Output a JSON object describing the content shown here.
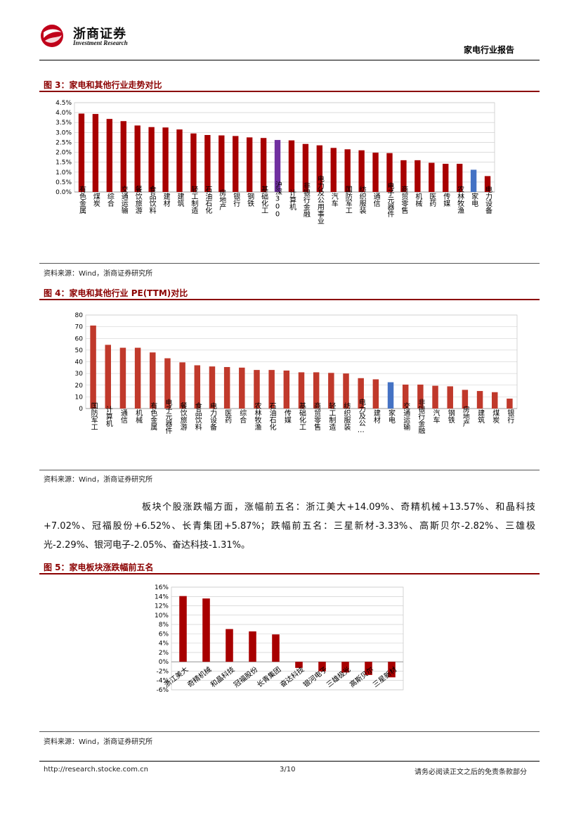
{
  "header": {
    "company_cn": "浙商证券",
    "company_en": "Investment Research",
    "report_type": "家电行业报告"
  },
  "figure3": {
    "title": "图 3：家电和其他行业走势对比",
    "source": "资料来源：Wind，浙商证券研究所",
    "chart_data": {
      "type": "bar",
      "categories": [
        "有色金属",
        "煤炭",
        "综合",
        "交通运输",
        "餐饮旅游",
        "食品饮料",
        "建材",
        "建筑",
        "轻工制造",
        "石油石化",
        "房地产",
        "银行",
        "钢铁",
        "基础化工",
        "沪深300",
        "计算机",
        "非银行金融",
        "电力及公用事业",
        "汽车",
        "国防军工",
        "纺织服装",
        "通信",
        "电子元器件",
        "商贸零售",
        "机械",
        "医药",
        "传媒",
        "农林牧渔",
        "家电",
        "电力设备"
      ],
      "values": [
        3.95,
        3.93,
        3.68,
        3.57,
        3.35,
        3.27,
        3.25,
        3.15,
        2.95,
        2.87,
        2.85,
        2.82,
        2.75,
        2.72,
        2.62,
        2.6,
        2.42,
        2.35,
        2.22,
        2.15,
        2.1,
        1.98,
        1.96,
        1.6,
        1.6,
        1.47,
        1.42,
        1.42,
        1.12,
        0.8
      ],
      "ylim": [
        0,
        4.5
      ],
      "yticks": [
        "0.0%",
        "0.5%",
        "1.0%",
        "1.5%",
        "2.0%",
        "2.5%",
        "3.0%",
        "3.5%",
        "4.0%",
        "4.5%"
      ],
      "tick_step": 0.5,
      "grid": true,
      "bar_color": "#a80000",
      "highlight": {
        "沪深300": "#7030a0",
        "家电": "#4472c4"
      }
    }
  },
  "figure4": {
    "title": "图 4：家电和其他行业 PE(TTM)对比",
    "source": "资料来源：Wind，浙商证券研究所",
    "chart_data": {
      "type": "bar",
      "categories": [
        "国防军工",
        "计算机",
        "通信",
        "机械",
        "有色金属",
        "电子元器件",
        "餐饮旅游",
        "食品饮料",
        "电力设备",
        "医药",
        "综合",
        "农林牧渔",
        "石油石化",
        "传媒",
        "基础化工",
        "商贸零售",
        "轻工制造",
        "纺织服装",
        "电力及公…",
        "建材",
        "家电",
        "交通运输",
        "非银行金融",
        "汽车",
        "钢铁",
        "房地产",
        "建筑",
        "煤炭",
        "银行"
      ],
      "values": [
        71,
        54.5,
        52,
        52,
        48,
        43,
        39.5,
        37,
        36,
        35.5,
        35,
        33,
        33,
        32.5,
        31,
        31,
        30.5,
        30,
        26,
        25,
        22.5,
        20.5,
        20.5,
        19.5,
        19,
        16,
        15,
        14,
        8.5
      ],
      "ylim": [
        0,
        80
      ],
      "yticks": [
        "0",
        "10",
        "20",
        "30",
        "40",
        "50",
        "60",
        "70",
        "80"
      ],
      "tick_step": 10,
      "grid": true,
      "bar_color": "#c0392b",
      "highlight": {
        "家电": "#4472c4"
      }
    }
  },
  "paragraph": "板块个股涨跌幅方面，涨幅前五名：浙江美大+14.09%、奇精机械+13.57%、和晶科技+7.02%、冠福股份+6.52%、长青集团+5.87%；跌幅前五名：三星新材-3.33%、高斯贝尔-2.82%、三雄极光-2.29%、银河电子-2.05%、奋达科技-1.31%。",
  "figure5": {
    "title": "图 5：家电板块涨跌幅前五名",
    "source": "资料来源：Wind，浙商证券研究所",
    "chart_data": {
      "type": "bar",
      "categories": [
        "浙江美大",
        "奇精机械",
        "和晶科技",
        "冠福股份",
        "长青集团",
        "奋达科技",
        "银河电子",
        "三雄极光",
        "高斯贝尔",
        "三星新材"
      ],
      "values": [
        14.09,
        13.57,
        7.02,
        6.52,
        5.87,
        -1.31,
        -2.05,
        -2.29,
        -2.82,
        -3.33
      ],
      "ylim": [
        -6,
        16
      ],
      "yticks": [
        "-6%",
        "-4%",
        "-2%",
        "0%",
        "2%",
        "4%",
        "6%",
        "8%",
        "10%",
        "12%",
        "14%",
        "16%"
      ],
      "tick_step": 2,
      "grid": true,
      "bar_color": "#a80000"
    }
  },
  "footer": {
    "url": "http://research.stocke.com.cn",
    "page": "3/10",
    "disclaimer": "请务必阅读正文之后的免责条款部分"
  }
}
